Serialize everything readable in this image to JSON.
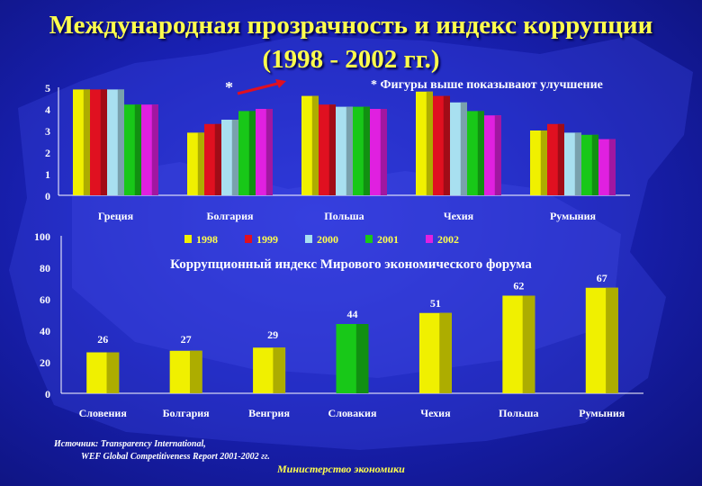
{
  "title_line1": "Международная прозрачность и индекс коррупции",
  "title_line2": "(1998 - 2002 гг.)",
  "note_star": "*",
  "note_text": "* Фигуры выше показывают улучшение",
  "source_line1": "Источник: Transparency International,",
  "source_line2": "WEF Global Competitiveness Report 2001-2002 гг.",
  "footer": "Министерство экономики",
  "colors": {
    "y1998": "#f0f000",
    "y1999": "#e01020",
    "y2000": "#a8e0f0",
    "y2001": "#18c818",
    "y2002": "#e020e0",
    "wef_yellow": "#f0f000",
    "wef_green": "#18c818"
  },
  "chart_data": [
    {
      "type": "bar",
      "categories": [
        "Греция",
        "Болгария",
        "Польша",
        "Чехия",
        "Румыния"
      ],
      "series": [
        {
          "name": "1998",
          "values": [
            4.9,
            2.9,
            4.6,
            4.8,
            3.0
          ]
        },
        {
          "name": "1999",
          "values": [
            4.9,
            3.3,
            4.2,
            4.6,
            3.3
          ]
        },
        {
          "name": "2000",
          "values": [
            4.9,
            3.5,
            4.1,
            4.3,
            2.9
          ]
        },
        {
          "name": "2001",
          "values": [
            4.2,
            3.9,
            4.1,
            3.9,
            2.8
          ]
        },
        {
          "name": "2002",
          "values": [
            4.2,
            4.0,
            4.0,
            3.7,
            2.6
          ]
        }
      ],
      "ylim": [
        0,
        5
      ],
      "yticks": [
        "0",
        "1",
        "2",
        "3",
        "4",
        "5"
      ],
      "legend": "bottom"
    },
    {
      "type": "bar",
      "title": "Коррупционный индекс Мирового экономического форума",
      "categories": [
        "Словения",
        "Болгария",
        "Венгрия",
        "Словакия",
        "Чехия",
        "Польша",
        "Румыния"
      ],
      "values": [
        26,
        27,
        29,
        44,
        51,
        62,
        67
      ],
      "highlight_index": 3,
      "ylim": [
        0,
        100
      ],
      "yticks": [
        "0",
        "20",
        "40",
        "60",
        "80",
        "100"
      ]
    }
  ]
}
